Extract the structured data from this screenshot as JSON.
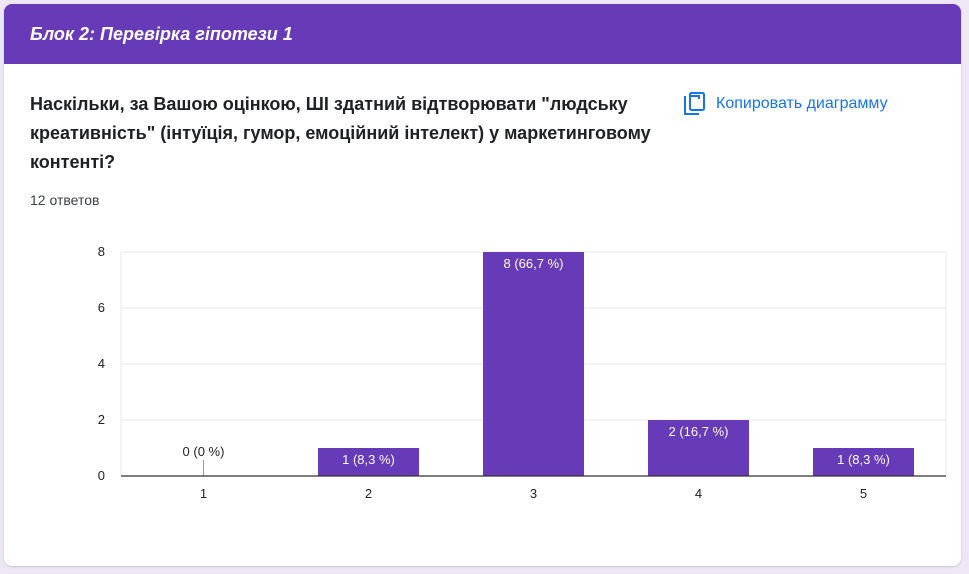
{
  "header": {
    "title": "Блок 2: Перевірка гіпотези 1"
  },
  "question": {
    "text": "Наскільки, за Вашою оцінкою, ШІ здатний відтворювати \"людську креативність\" (інтуїція, гумор, емоційний інтелект) у маркетинговому контенті?",
    "responses": "12 ответов"
  },
  "actions": {
    "copy_label": "Копировать диаграмму",
    "copy_icon": "copy-icon"
  },
  "colors": {
    "accent": "#673ab7",
    "link": "#1a73e8",
    "background": "#ede7f6"
  },
  "chart_data": {
    "type": "bar",
    "categories": [
      "1",
      "2",
      "3",
      "4",
      "5"
    ],
    "values": [
      0,
      1,
      8,
      2,
      1
    ],
    "data_labels": [
      "0 (0 %)",
      "1 (8,3 %)",
      "8 (66,7 %)",
      "2 (16,7 %)",
      "1 (8,3 %)"
    ],
    "y_ticks": [
      0,
      2,
      4,
      6,
      8
    ],
    "ylim": [
      0,
      8
    ],
    "grid": true,
    "title": "",
    "xlabel": "",
    "ylabel": ""
  }
}
